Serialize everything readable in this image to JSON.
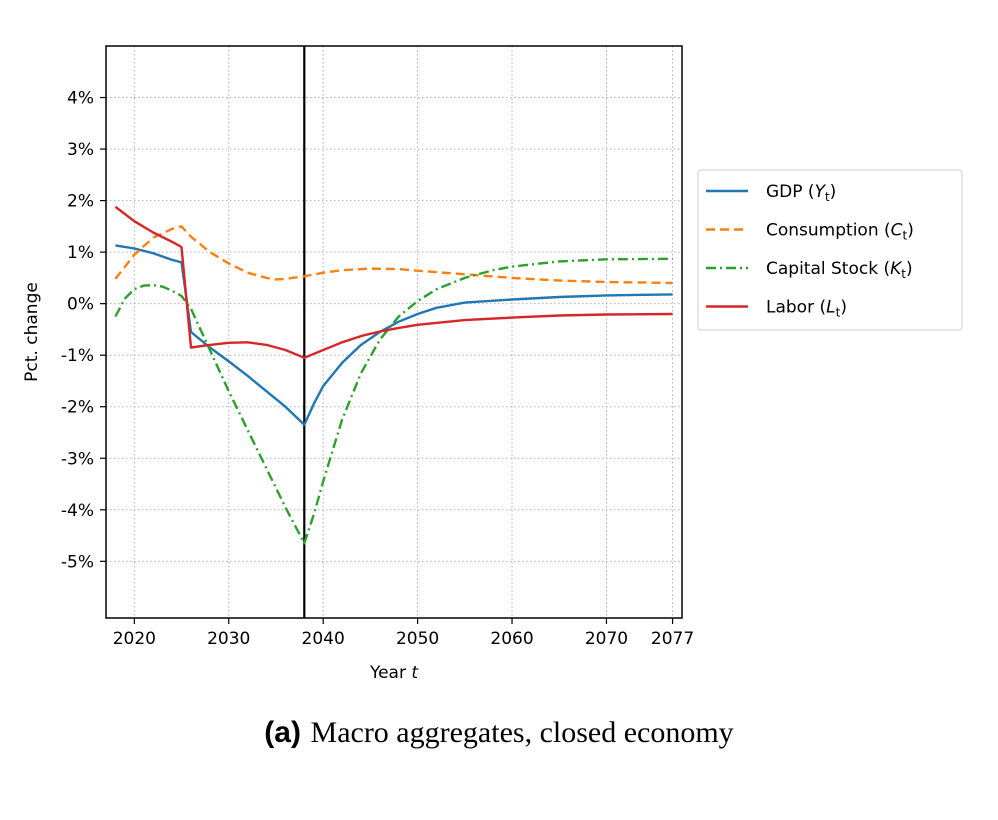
{
  "chart_data": {
    "type": "line",
    "xlabel_main": "Year ",
    "xlabel_var": "t",
    "ylabel": "Pct. change",
    "xlim": [
      2017,
      2078
    ],
    "ylim": [
      -6.1,
      5.0
    ],
    "x_ticks": [
      2020,
      2030,
      2040,
      2050,
      2060,
      2070,
      2077
    ],
    "x_tick_labels": [
      "2020",
      "2030",
      "2040",
      "2050",
      "2060",
      "2070",
      "2077"
    ],
    "y_ticks": [
      4,
      3,
      2,
      1,
      0,
      -1,
      -2,
      -3,
      -4,
      -5
    ],
    "y_tick_labels": [
      "4%",
      "3%",
      "2%",
      "1%",
      "0%",
      "-1%",
      "-2%",
      "-3%",
      "-4%",
      "-5%"
    ],
    "grid": true,
    "vline_x": 2038,
    "legend_position": "right",
    "series": [
      {
        "key": "gdp",
        "legend_main": "GDP (",
        "legend_var": "Y",
        "legend_sub": "t",
        "legend_end": ")",
        "color": "#1f77b4",
        "style": "solid",
        "points": [
          [
            2018,
            1.13
          ],
          [
            2020,
            1.07
          ],
          [
            2022,
            0.98
          ],
          [
            2024,
            0.85
          ],
          [
            2025,
            0.8
          ],
          [
            2026,
            -0.55
          ],
          [
            2028,
            -0.85
          ],
          [
            2030,
            -1.12
          ],
          [
            2032,
            -1.4
          ],
          [
            2034,
            -1.7
          ],
          [
            2036,
            -2.0
          ],
          [
            2038,
            -2.35
          ],
          [
            2039,
            -1.95
          ],
          [
            2040,
            -1.6
          ],
          [
            2042,
            -1.15
          ],
          [
            2044,
            -0.8
          ],
          [
            2046,
            -0.55
          ],
          [
            2048,
            -0.35
          ],
          [
            2050,
            -0.2
          ],
          [
            2052,
            -0.08
          ],
          [
            2055,
            0.02
          ],
          [
            2060,
            0.08
          ],
          [
            2065,
            0.13
          ],
          [
            2070,
            0.16
          ],
          [
            2077,
            0.18
          ]
        ]
      },
      {
        "key": "consumption",
        "legend_main": "Consumption (",
        "legend_var": "C",
        "legend_sub": "t",
        "legend_end": ")",
        "color": "#ff7f0e",
        "style": "dashed",
        "points": [
          [
            2018,
            0.48
          ],
          [
            2020,
            0.95
          ],
          [
            2022,
            1.28
          ],
          [
            2024,
            1.45
          ],
          [
            2025,
            1.5
          ],
          [
            2026,
            1.3
          ],
          [
            2028,
            1.0
          ],
          [
            2030,
            0.78
          ],
          [
            2032,
            0.6
          ],
          [
            2034,
            0.5
          ],
          [
            2035,
            0.47
          ],
          [
            2036,
            0.48
          ],
          [
            2038,
            0.53
          ],
          [
            2040,
            0.6
          ],
          [
            2042,
            0.65
          ],
          [
            2045,
            0.68
          ],
          [
            2048,
            0.67
          ],
          [
            2050,
            0.64
          ],
          [
            2055,
            0.57
          ],
          [
            2060,
            0.5
          ],
          [
            2065,
            0.45
          ],
          [
            2070,
            0.42
          ],
          [
            2077,
            0.4
          ]
        ]
      },
      {
        "key": "capital",
        "legend_main": "Capital Stock (",
        "legend_var": "K",
        "legend_sub": "t",
        "legend_end": ")",
        "color": "#2ca02c",
        "style": "dashdot",
        "points": [
          [
            2018,
            -0.25
          ],
          [
            2019,
            0.1
          ],
          [
            2020,
            0.28
          ],
          [
            2021,
            0.35
          ],
          [
            2022,
            0.36
          ],
          [
            2023,
            0.33
          ],
          [
            2024,
            0.25
          ],
          [
            2025,
            0.15
          ],
          [
            2026,
            -0.1
          ],
          [
            2028,
            -0.9
          ],
          [
            2030,
            -1.7
          ],
          [
            2032,
            -2.45
          ],
          [
            2034,
            -3.2
          ],
          [
            2036,
            -3.95
          ],
          [
            2038,
            -4.65
          ],
          [
            2039,
            -4.1
          ],
          [
            2040,
            -3.45
          ],
          [
            2042,
            -2.25
          ],
          [
            2044,
            -1.35
          ],
          [
            2046,
            -0.7
          ],
          [
            2048,
            -0.25
          ],
          [
            2050,
            0.05
          ],
          [
            2052,
            0.28
          ],
          [
            2055,
            0.5
          ],
          [
            2058,
            0.65
          ],
          [
            2060,
            0.72
          ],
          [
            2065,
            0.82
          ],
          [
            2070,
            0.86
          ],
          [
            2077,
            0.87
          ]
        ]
      },
      {
        "key": "labor",
        "legend_main": "Labor (",
        "legend_var": "L",
        "legend_sub": "t",
        "legend_end": ")",
        "color": "#d62728",
        "style": "solid",
        "points": [
          [
            2018,
            1.88
          ],
          [
            2020,
            1.6
          ],
          [
            2022,
            1.38
          ],
          [
            2024,
            1.2
          ],
          [
            2025,
            1.1
          ],
          [
            2026,
            -0.85
          ],
          [
            2028,
            -0.8
          ],
          [
            2030,
            -0.76
          ],
          [
            2032,
            -0.75
          ],
          [
            2034,
            -0.8
          ],
          [
            2036,
            -0.9
          ],
          [
            2038,
            -1.05
          ],
          [
            2040,
            -0.9
          ],
          [
            2042,
            -0.75
          ],
          [
            2044,
            -0.63
          ],
          [
            2046,
            -0.54
          ],
          [
            2048,
            -0.47
          ],
          [
            2050,
            -0.41
          ],
          [
            2055,
            -0.32
          ],
          [
            2060,
            -0.27
          ],
          [
            2065,
            -0.23
          ],
          [
            2070,
            -0.21
          ],
          [
            2077,
            -0.2
          ]
        ]
      }
    ]
  },
  "caption": {
    "label": "(a)",
    "text": "Macro aggregates, closed economy"
  }
}
